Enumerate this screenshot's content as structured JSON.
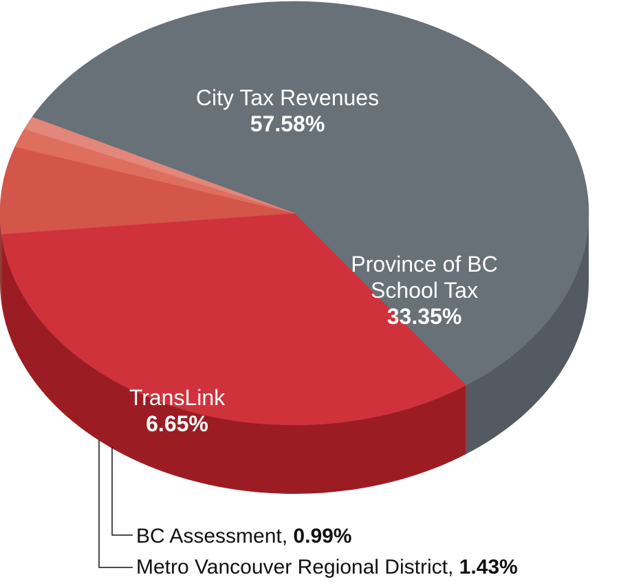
{
  "chart_data": {
    "type": "pie",
    "style": "3d",
    "slices": [
      {
        "name": "City Tax Revenues",
        "value": 57.58,
        "label": "57.58%",
        "color": "#687078",
        "side_color": "#535a61"
      },
      {
        "name": "Province of BC School Tax",
        "value": 33.35,
        "label": "33.35%",
        "color": "#cf323b",
        "side_color": "#9b1d23"
      },
      {
        "name": "TransLink",
        "value": 6.65,
        "label": "6.65%",
        "color": "#d4554a",
        "side_color": "#913c36"
      },
      {
        "name": "BC Assessment",
        "value": 0.99,
        "label": "0.99%",
        "color": "#e2877a",
        "side_color": "#b06f66"
      },
      {
        "name": "Metro Vancouver Regional District",
        "value": 1.43,
        "label": "1.43%",
        "color": "#de6e5e",
        "side_color": "#a65b50"
      }
    ]
  },
  "labels": {
    "city": {
      "line1": "City Tax Revenues",
      "pct": "57.58%"
    },
    "province": {
      "line1": "Province of BC",
      "line2": "School Tax",
      "pct": "33.35%"
    },
    "translink": {
      "line1": "TransLink",
      "pct": "6.65%"
    },
    "bc_assessment": {
      "text": "BC Assessment, ",
      "pct": "0.99%"
    },
    "metro": {
      "text": "Metro Vancouver Regional District, ",
      "pct": "1.43%"
    }
  }
}
